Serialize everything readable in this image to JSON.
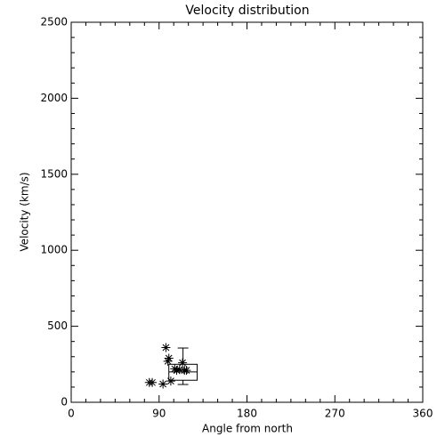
{
  "chart_data": {
    "type": "scatter",
    "title": "Velocity distribution",
    "x_label": "Angle from north",
    "y_label": "Velocity (km/s)",
    "xlim": [
      0,
      360
    ],
    "xticks": [
      0,
      90,
      180,
      270,
      360
    ],
    "xminorticks": [
      15,
      30,
      45,
      60,
      75,
      105,
      120,
      135,
      150,
      165,
      195,
      210,
      225,
      240,
      255,
      285,
      300,
      315,
      330,
      345
    ],
    "ylim": [
      0,
      2500
    ],
    "yticks": [
      0,
      500,
      1000,
      1500,
      2000,
      2500
    ],
    "yminorticks": [
      100,
      200,
      300,
      400,
      600,
      700,
      800,
      900,
      1100,
      1200,
      1300,
      1400,
      1600,
      1700,
      1800,
      1900,
      2100,
      2200,
      2300,
      2400
    ],
    "color": "#000000",
    "x": [
      80,
      83,
      94,
      97,
      99,
      100,
      102,
      106,
      108,
      111,
      114,
      116,
      118
    ],
    "y": [
      130,
      130,
      120,
      360,
      270,
      290,
      140,
      220,
      210,
      215,
      260,
      210,
      210
    ],
    "box": {
      "x_low": 100,
      "x_high": 129,
      "whisker_low": 117,
      "q1": 145,
      "median": 200,
      "q3": 250,
      "whisker_high": 357
    }
  }
}
